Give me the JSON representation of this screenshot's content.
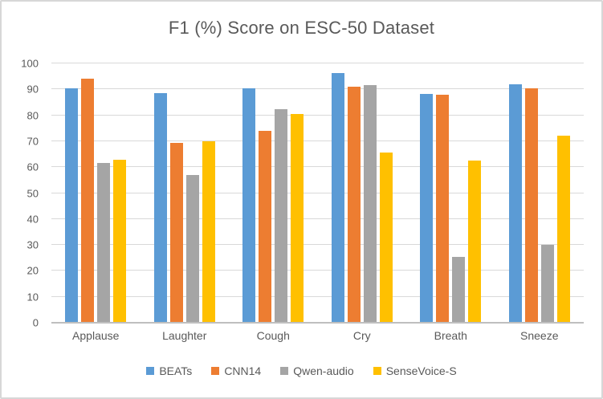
{
  "chart_data": {
    "type": "bar",
    "title": "F1 (%) Score on ESC-50 Dataset",
    "categories": [
      "Applause",
      "Laughter",
      "Cough",
      "Cry",
      "Breath",
      "Sneeze"
    ],
    "series": [
      {
        "name": "BEATs",
        "color": "#5B9BD5",
        "values": [
          90.5,
          88.5,
          90.5,
          96.2,
          88.2,
          92.0
        ]
      },
      {
        "name": "CNN14",
        "color": "#ED7D31",
        "values": [
          94.0,
          69.5,
          74.0,
          91.0,
          87.9,
          90.5
        ]
      },
      {
        "name": "Qwen-audio",
        "color": "#A5A5A5",
        "values": [
          61.5,
          57.0,
          82.5,
          91.5,
          25.5,
          30.0
        ]
      },
      {
        "name": "SenseVoice-S",
        "color": "#FFC000",
        "values": [
          63.0,
          70.0,
          80.5,
          65.5,
          62.5,
          72.0
        ]
      }
    ],
    "xlabel": "",
    "ylabel": "",
    "ylim": [
      0,
      100
    ],
    "y_ticks": [
      0,
      10,
      20,
      30,
      40,
      50,
      60,
      70,
      80,
      90,
      100
    ],
    "grid": true,
    "legend_position": "bottom"
  },
  "colors": {
    "text": "#595959",
    "gridline": "#D9D9D9",
    "axis_line": "#BFBFBF",
    "background": "#FFFFFF",
    "frame_border": "#D7D7D7"
  }
}
